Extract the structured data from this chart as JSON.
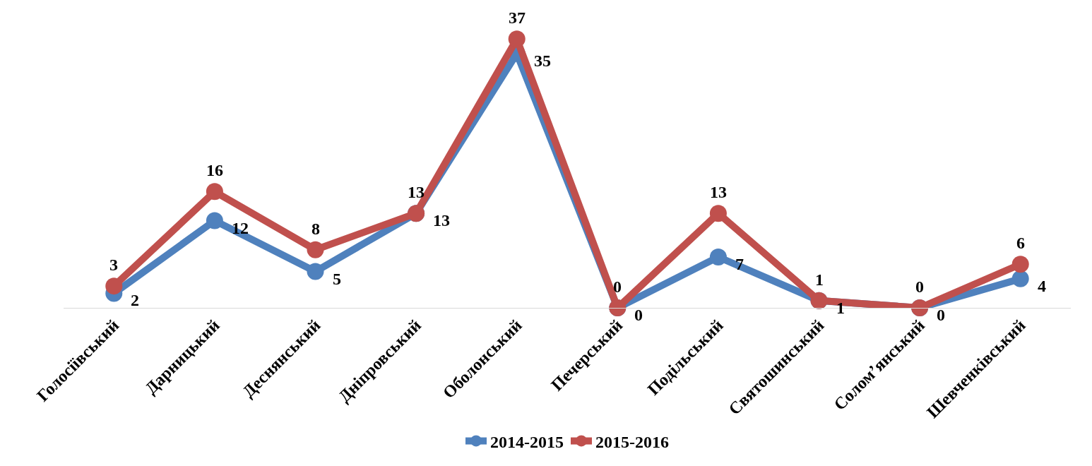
{
  "chart_data": {
    "type": "line",
    "categories": [
      "Голосіївський",
      "Дарницький",
      "Деснянський",
      "Дніпровський",
      "Оболонський",
      "Печерський",
      "Подільський",
      "Святошинський",
      "Солом’янський",
      "Шевченківський"
    ],
    "series": [
      {
        "name": "2014-2015",
        "color": "#4f81bd",
        "values": [
          2,
          12,
          5,
          13,
          35,
          0,
          7,
          1,
          0,
          4
        ]
      },
      {
        "name": "2015-2016",
        "color": "#c0504d",
        "values": [
          3,
          16,
          8,
          13,
          37,
          0,
          13,
          1,
          0,
          6
        ]
      }
    ],
    "data_labels": true,
    "marker": "circle",
    "line_style": "solid",
    "legend": "bottom"
  }
}
